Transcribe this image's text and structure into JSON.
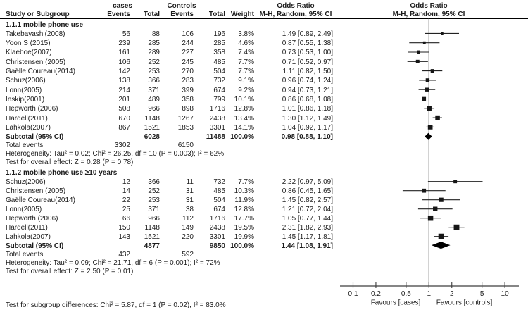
{
  "header": {
    "group1": "cases",
    "group2": "Controls",
    "or_title": "Odds Ratio",
    "or_subtitle": "M-H, Random, 95% CI",
    "plot_title": "Odds Ratio",
    "plot_subtitle": "M-H, Random, 95% CI",
    "columns": [
      "Study or Subgroup",
      "Events",
      "Total",
      "Events",
      "Total",
      "Weight"
    ]
  },
  "sections": [
    {
      "title": "1.1.1 mobile phone use",
      "studies": [
        {
          "name": "Takebayashi(2008)",
          "e1": "56",
          "t1": "88",
          "e2": "106",
          "t2": "196",
          "weight": "3.8%",
          "or_text": "1.49 [0.89, 2.49]"
        },
        {
          "name": "Yoon S (2015)",
          "e1": "239",
          "t1": "285",
          "e2": "244",
          "t2": "285",
          "weight": "4.6%",
          "or_text": "0.87 [0.55, 1.38]"
        },
        {
          "name": "Klaeboe(2007)",
          "e1": "161",
          "t1": "289",
          "e2": "227",
          "t2": "358",
          "weight": "7.4%",
          "or_text": "0.73 [0.53, 1.00]"
        },
        {
          "name": "Christensen (2005)",
          "e1": "106",
          "t1": "252",
          "e2": "245",
          "t2": "485",
          "weight": "7.7%",
          "or_text": "0.71 [0.52, 0.97]"
        },
        {
          "name": "Gaëlle Coureau(2014)",
          "e1": "142",
          "t1": "253",
          "e2": "270",
          "t2": "504",
          "weight": "7.7%",
          "or_text": "1.11 [0.82, 1.50]"
        },
        {
          "name": "Schuz(2006)",
          "e1": "138",
          "t1": "366",
          "e2": "283",
          "t2": "732",
          "weight": "9.1%",
          "or_text": "0.96 [0.74, 1.24]"
        },
        {
          "name": "Lonn(2005)",
          "e1": "214",
          "t1": "371",
          "e2": "399",
          "t2": "674",
          "weight": "9.2%",
          "or_text": "0.94 [0.73, 1.21]"
        },
        {
          "name": "Inskip(2001)",
          "e1": "201",
          "t1": "489",
          "e2": "358",
          "t2": "799",
          "weight": "10.1%",
          "or_text": "0.86 [0.68, 1.08]"
        },
        {
          "name": "Hepworth (2006)",
          "e1": "508",
          "t1": "966",
          "e2": "898",
          "t2": "1716",
          "weight": "12.8%",
          "or_text": "1.01 [0.86, 1.18]"
        },
        {
          "name": "Hardell(2011)",
          "e1": "670",
          "t1": "1148",
          "e2": "1267",
          "t2": "2438",
          "weight": "13.4%",
          "or_text": "1.30 [1.12, 1.49]"
        },
        {
          "name": "Lahkola(2007)",
          "e1": "867",
          "t1": "1521",
          "e2": "1853",
          "t2": "3301",
          "weight": "14.1%",
          "or_text": "1.04 [0.92, 1.17]"
        }
      ],
      "subtotal": {
        "label": "Subtotal (95% CI)",
        "t1": "6028",
        "t2": "11488",
        "weight": "100.0%",
        "or_text": "0.98 [0.88, 1.10]"
      },
      "total_events": {
        "label": "Total events",
        "e1": "3302",
        "e2": "6150"
      },
      "heterogeneity": "Heterogeneity: Tau² = 0.02; Chi² = 26.25, df = 10 (P = 0.003); I² = 62%",
      "overall_effect": "Test for overall effect: Z = 0.28 (P = 0.78)"
    },
    {
      "title": "1.1.2 mobile phone use ≥10 years",
      "studies": [
        {
          "name": "Schuz(2006)",
          "e1": "12",
          "t1": "366",
          "e2": "11",
          "t2": "732",
          "weight": "7.7%",
          "or_text": "2.22 [0.97, 5.09]"
        },
        {
          "name": "Christensen (2005)",
          "e1": "14",
          "t1": "252",
          "e2": "31",
          "t2": "485",
          "weight": "10.3%",
          "or_text": "0.86 [0.45, 1.65]"
        },
        {
          "name": "Gaëlle Coureau(2014)",
          "e1": "22",
          "t1": "253",
          "e2": "31",
          "t2": "504",
          "weight": "11.9%",
          "or_text": "1.45 [0.82, 2.57]"
        },
        {
          "name": "Lonn(2005)",
          "e1": "25",
          "t1": "371",
          "e2": "38",
          "t2": "674",
          "weight": "12.8%",
          "or_text": "1.21 [0.72, 2.04]"
        },
        {
          "name": "Hepworth (2006)",
          "e1": "66",
          "t1": "966",
          "e2": "112",
          "t2": "1716",
          "weight": "17.7%",
          "or_text": "1.05 [0.77, 1.44]"
        },
        {
          "name": "Hardell(2011)",
          "e1": "150",
          "t1": "1148",
          "e2": "149",
          "t2": "2438",
          "weight": "19.5%",
          "or_text": "2.31 [1.82, 2.93]"
        },
        {
          "name": "Lahkola(2007)",
          "e1": "143",
          "t1": "1521",
          "e2": "220",
          "t2": "3301",
          "weight": "19.9%",
          "or_text": "1.45 [1.17, 1.81]"
        }
      ],
      "subtotal": {
        "label": "Subtotal (95% CI)",
        "t1": "4877",
        "t2": "9850",
        "weight": "100.0%",
        "or_text": "1.44 [1.08, 1.91]"
      },
      "total_events": {
        "label": "Total events",
        "e1": "432",
        "e2": "592"
      },
      "heterogeneity": "Heterogeneity: Tau² = 0.09; Chi² = 21.71, df = 6 (P = 0.001); I² = 72%",
      "overall_effect": "Test for overall effect: Z = 2.50 (P = 0.01)"
    }
  ],
  "footer": {
    "subgroup_diff": "Test for subgroup differences: Chi² = 5.87, df = 1 (P = 0.02), I² = 83.0%"
  },
  "chart_data": {
    "type": "forest",
    "effect_measure": "Odds Ratio, M-H, Random, 95% CI",
    "x_scale": "log10",
    "x_ticks": [
      0.1,
      0.2,
      0.5,
      1,
      2,
      5,
      10
    ],
    "x_range": [
      0.1,
      10
    ],
    "null_line": 1,
    "xlabel_left": "Favours [cases]",
    "xlabel_right": "Favours [controls]",
    "subgroups": [
      {
        "name": "1.1.1 mobile phone use",
        "points": [
          {
            "study": "Takebayashi(2008)",
            "or": 1.49,
            "lo": 0.89,
            "hi": 2.49,
            "weight": 3.8
          },
          {
            "study": "Yoon S (2015)",
            "or": 0.87,
            "lo": 0.55,
            "hi": 1.38,
            "weight": 4.6
          },
          {
            "study": "Klaeboe(2007)",
            "or": 0.73,
            "lo": 0.53,
            "hi": 1.0,
            "weight": 7.4
          },
          {
            "study": "Christensen (2005)",
            "or": 0.71,
            "lo": 0.52,
            "hi": 0.97,
            "weight": 7.7
          },
          {
            "study": "Gaëlle Coureau(2014)",
            "or": 1.11,
            "lo": 0.82,
            "hi": 1.5,
            "weight": 7.7
          },
          {
            "study": "Schuz(2006)",
            "or": 0.96,
            "lo": 0.74,
            "hi": 1.24,
            "weight": 9.1
          },
          {
            "study": "Lonn(2005)",
            "or": 0.94,
            "lo": 0.73,
            "hi": 1.21,
            "weight": 9.2
          },
          {
            "study": "Inskip(2001)",
            "or": 0.86,
            "lo": 0.68,
            "hi": 1.08,
            "weight": 10.1
          },
          {
            "study": "Hepworth (2006)",
            "or": 1.01,
            "lo": 0.86,
            "hi": 1.18,
            "weight": 12.8
          },
          {
            "study": "Hardell(2011)",
            "or": 1.3,
            "lo": 1.12,
            "hi": 1.49,
            "weight": 13.4
          },
          {
            "study": "Lahkola(2007)",
            "or": 1.04,
            "lo": 0.92,
            "hi": 1.17,
            "weight": 14.1
          }
        ],
        "diamond": {
          "or": 0.98,
          "lo": 0.88,
          "hi": 1.1
        }
      },
      {
        "name": "1.1.2 mobile phone use ≥10 years",
        "points": [
          {
            "study": "Schuz(2006)",
            "or": 2.22,
            "lo": 0.97,
            "hi": 5.09,
            "weight": 7.7
          },
          {
            "study": "Christensen (2005)",
            "or": 0.86,
            "lo": 0.45,
            "hi": 1.65,
            "weight": 10.3
          },
          {
            "study": "Gaëlle Coureau(2014)",
            "or": 1.45,
            "lo": 0.82,
            "hi": 2.57,
            "weight": 11.9
          },
          {
            "study": "Lonn(2005)",
            "or": 1.21,
            "lo": 0.72,
            "hi": 2.04,
            "weight": 12.8
          },
          {
            "study": "Hepworth (2006)",
            "or": 1.05,
            "lo": 0.77,
            "hi": 1.44,
            "weight": 17.7
          },
          {
            "study": "Hardell(2011)",
            "or": 2.31,
            "lo": 1.82,
            "hi": 2.93,
            "weight": 19.5
          },
          {
            "study": "Lahkola(2007)",
            "or": 1.45,
            "lo": 1.17,
            "hi": 1.81,
            "weight": 19.9
          }
        ],
        "diamond": {
          "or": 1.44,
          "lo": 1.08,
          "hi": 1.91
        }
      }
    ],
    "colors": {
      "marker": "#161616",
      "ci_line": "#222222",
      "null_line": "#6b6b6b",
      "axis": "#3d3d3d",
      "diamond": "#000000"
    }
  }
}
